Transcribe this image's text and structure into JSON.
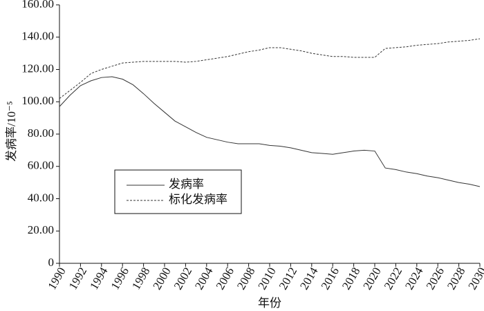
{
  "chart_data": {
    "type": "line",
    "y_label": "发病率/10⁻⁵",
    "x_label": "年份",
    "x": [
      1990,
      1991,
      1992,
      1993,
      1994,
      1995,
      1996,
      1997,
      1998,
      1999,
      2000,
      2001,
      2002,
      2003,
      2004,
      2005,
      2006,
      2007,
      2008,
      2009,
      2010,
      2011,
      2012,
      2013,
      2014,
      2015,
      2016,
      2017,
      2018,
      2019,
      2020,
      2021,
      2022,
      2023,
      2024,
      2025,
      2026,
      2027,
      2028,
      2029,
      2030
    ],
    "series": [
      {
        "name": "发病率",
        "color": "#333333",
        "style": "solid",
        "values": [
          97,
          104,
          110,
          113,
          115,
          115.5,
          114,
          110.5,
          105,
          99,
          93.5,
          88,
          84.5,
          81,
          78,
          76.5,
          75,
          74,
          74,
          74,
          73,
          72.5,
          71.5,
          70,
          68.5,
          68,
          67.5,
          68.5,
          69.5,
          70,
          69.5,
          59,
          58,
          56.5,
          55.5,
          54,
          53,
          51.5,
          50,
          49,
          47.5
        ]
      },
      {
        "name": "标化发病率",
        "color": "#333333",
        "style": "dashed",
        "values": [
          102,
          107,
          112,
          117.5,
          120,
          122,
          124,
          124.5,
          125,
          125,
          125,
          125,
          124.5,
          125,
          126,
          127,
          128,
          129.5,
          131,
          132,
          133.5,
          133.5,
          132.5,
          131.5,
          130,
          129,
          128,
          128,
          127.5,
          127.5,
          127.5,
          133,
          133.5,
          134,
          135,
          135.5,
          136,
          137,
          137.5,
          138,
          139
        ]
      }
    ],
    "xlim": [
      1990,
      2030
    ],
    "xticks": [
      1990,
      1992,
      1994,
      1996,
      1998,
      2000,
      2002,
      2004,
      2006,
      2008,
      2010,
      2012,
      2014,
      2016,
      2018,
      2020,
      2022,
      2024,
      2026,
      2028,
      2030
    ],
    "ylim": [
      0,
      160
    ],
    "yticks": [
      0,
      {
        "value": 20,
        "label": "20.00"
      },
      {
        "value": 40,
        "label": "40.00"
      },
      {
        "value": 60,
        "label": "60.00"
      },
      {
        "value": 80,
        "label": "80.00"
      },
      {
        "value": 100,
        "label": "100.00"
      },
      {
        "value": 120,
        "label": "120.00"
      },
      {
        "value": 140,
        "label": "140.00"
      },
      {
        "value": 160,
        "label": "160.00"
      }
    ],
    "grid": false
  }
}
